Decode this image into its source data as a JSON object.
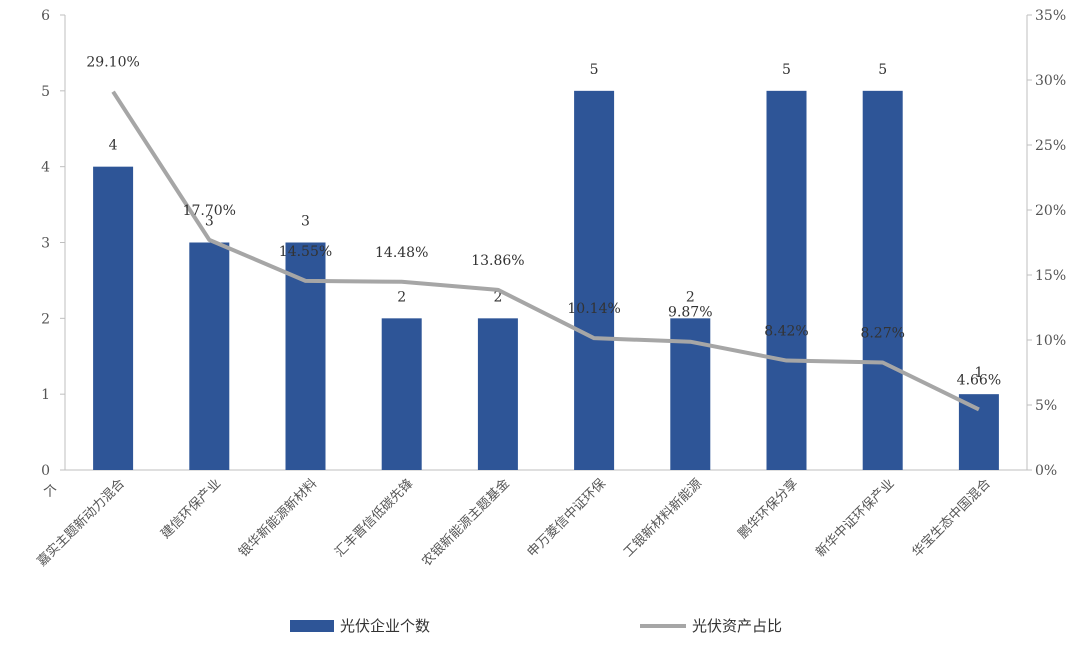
{
  "chart_data": {
    "type": "bar",
    "title": "",
    "categories": [
      "嘉实主题新动力混合",
      "建信环保产业",
      "银华新能源新材料",
      "汇丰晋信低碳先锋",
      "农银新能源主题基金",
      "申万菱信中证环保",
      "工银新材料新能源",
      "鹏华环保分享",
      "新华中证环保产业",
      "华宝生态中国混合"
    ],
    "y_left": {
      "label": "个",
      "range": [
        0,
        6
      ],
      "ticks": [
        "0",
        "1",
        "2",
        "3",
        "4",
        "5",
        "6"
      ]
    },
    "y_right": {
      "range": [
        0,
        35
      ],
      "ticks": [
        "0%",
        "5%",
        "10%",
        "15%",
        "20%",
        "25%",
        "30%",
        "35%"
      ]
    },
    "series": [
      {
        "name": "光伏企业个数",
        "type": "bar",
        "axis": "left",
        "values": [
          4,
          3,
          3,
          2,
          2,
          5,
          2,
          5,
          5,
          1
        ],
        "labels": [
          "4",
          "3",
          "3",
          "2",
          "2",
          "5",
          "2",
          "5",
          "5",
          "1"
        ],
        "color": "#2E5597"
      },
      {
        "name": "光伏资产占比",
        "type": "line",
        "axis": "right",
        "values": [
          29.1,
          17.7,
          14.55,
          14.48,
          13.86,
          10.14,
          9.87,
          8.42,
          8.27,
          4.66
        ],
        "labels": [
          "29.10%",
          "17.70%",
          "14.55%",
          "14.48%",
          "13.86%",
          "10.14%",
          "9.87%",
          "8.42%",
          "8.27%",
          "4.66%"
        ],
        "color": "#A6A6A6"
      }
    ],
    "legend_position": "bottom",
    "grid": false
  }
}
